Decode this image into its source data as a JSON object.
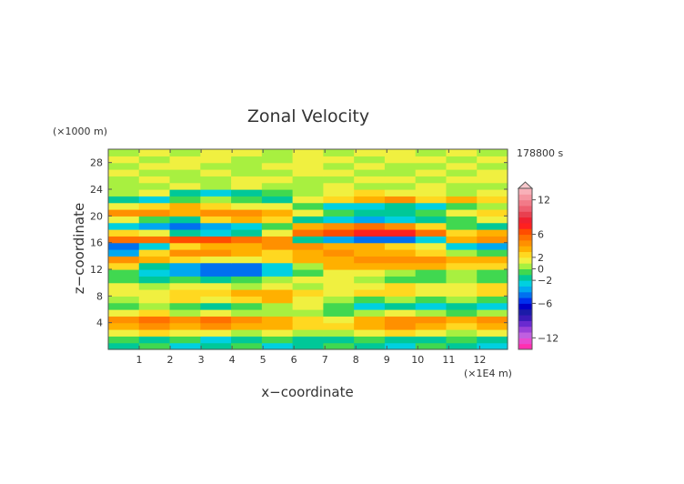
{
  "chart_data": {
    "type": "heatmap",
    "title": "Zonal Velocity",
    "xlabel": "x−coordinate",
    "ylabel": "z−coordinate",
    "x_unit": "(×1E4 m)",
    "y_unit": "(×1000 m)",
    "time_label": "178800 s",
    "x_ticks": [
      "1",
      "2",
      "3",
      "4",
      "5",
      "6",
      "7",
      "8",
      "9",
      "10",
      "11",
      "12"
    ],
    "y_ticks": [
      "4",
      "8",
      "12",
      "16",
      "20",
      "24",
      "28"
    ],
    "xlim": [
      0,
      12.9
    ],
    "ylim": [
      0,
      30
    ],
    "grid": false,
    "legend_position": "right",
    "colorbar": {
      "levels": [
        -14,
        -13,
        -12,
        -11,
        -10,
        -9,
        -8,
        -7,
        -6,
        -5,
        -4,
        -3,
        -2,
        -1,
        0,
        1,
        2,
        3,
        4,
        5,
        6,
        7,
        8,
        9,
        10,
        11,
        12,
        13,
        14
      ],
      "colors": [
        "#ff2fb0",
        "#e84ad0",
        "#c060e0",
        "#9a40d8",
        "#6a2ad0",
        "#3a1ab8",
        "#1b1ba8",
        "#0000c8",
        "#0030ee",
        "#0070f0",
        "#00a8f0",
        "#00d0e0",
        "#00c898",
        "#40d850",
        "#a8f040",
        "#f0f040",
        "#ffd820",
        "#ffb000",
        "#ff9000",
        "#ff7000",
        "#ff4c00",
        "#ff2020",
        "#f02030",
        "#e84050",
        "#ee5f70",
        "#f27a88",
        "#f595a0",
        "#f8b0b8"
      ],
      "tick_labels": [
        "12",
        "6",
        "2",
        "0",
        "−2",
        "−6",
        "−12"
      ],
      "tick_values": [
        12,
        6,
        2,
        0,
        -2,
        -6,
        -12
      ]
    },
    "rows": [
      {
        "z": 0.5,
        "u": [
          -2,
          -1,
          -3,
          -2,
          -1,
          -3,
          -2,
          -1,
          -2,
          -3,
          -1,
          -2,
          -3
        ]
      },
      {
        "z": 1.5,
        "u": [
          -1,
          -2,
          -1,
          -3,
          -2,
          -1,
          -2,
          -2,
          -1,
          -2,
          -2,
          -1,
          -2
        ]
      },
      {
        "z": 2.5,
        "u": [
          1,
          2,
          1,
          1,
          0,
          1,
          0,
          0,
          1,
          2,
          1,
          0,
          1
        ]
      },
      {
        "z": 3.5,
        "u": [
          3,
          4,
          3,
          4,
          3,
          3,
          2,
          2,
          3,
          4,
          3,
          2,
          3
        ]
      },
      {
        "z": 4.5,
        "u": [
          4,
          5,
          4,
          5,
          4,
          3,
          2,
          1,
          3,
          4,
          4,
          3,
          4
        ]
      },
      {
        "z": 5.5,
        "u": [
          1,
          2,
          0,
          1,
          0,
          0,
          0,
          -1,
          0,
          1,
          0,
          -1,
          0
        ]
      },
      {
        "z": 6.5,
        "u": [
          -1,
          0,
          -1,
          -2,
          -1,
          0,
          1,
          -1,
          -3,
          -2,
          -3,
          -2,
          -3
        ]
      },
      {
        "z": 7.5,
        "u": [
          0,
          1,
          2,
          1,
          2,
          3,
          1,
          0,
          -1,
          0,
          -1,
          0,
          -1
        ]
      },
      {
        "z": 8.5,
        "u": [
          1,
          1,
          2,
          2,
          3,
          3,
          2,
          1,
          2,
          2,
          1,
          1,
          2
        ]
      },
      {
        "z": 9.5,
        "u": [
          1,
          0,
          1,
          1,
          0,
          1,
          0,
          1,
          1,
          2,
          1,
          1,
          2
        ]
      },
      {
        "z": 10.5,
        "u": [
          -1,
          -2,
          -1,
          -2,
          -1,
          0,
          1,
          1,
          0,
          -1,
          -1,
          0,
          -1
        ]
      },
      {
        "z": 11.5,
        "u": [
          -1,
          -3,
          -4,
          -5,
          -5,
          -3,
          -1,
          1,
          1,
          0,
          -1,
          0,
          -1
        ]
      },
      {
        "z": 12.5,
        "u": [
          2,
          -2,
          -4,
          -5,
          -5,
          -3,
          0,
          3,
          3,
          3,
          3,
          2,
          2
        ]
      },
      {
        "z": 13.5,
        "u": [
          4,
          3,
          2,
          1,
          1,
          2,
          3,
          3,
          4,
          4,
          4,
          3,
          3
        ]
      },
      {
        "z": 14.5,
        "u": [
          -4,
          2,
          4,
          4,
          3,
          2,
          3,
          4,
          3,
          3,
          2,
          0,
          -1
        ]
      },
      {
        "z": 15.5,
        "u": [
          -5,
          -3,
          2,
          3,
          3,
          4,
          4,
          3,
          3,
          2,
          1,
          -3,
          -4
        ]
      },
      {
        "z": 16.5,
        "u": [
          5,
          5,
          6,
          6,
          5,
          4,
          -2,
          -4,
          -5,
          -5,
          -3,
          3,
          4
        ]
      },
      {
        "z": 17.5,
        "u": [
          2,
          1,
          -2,
          -3,
          -2,
          1,
          5,
          6,
          7,
          7,
          5,
          2,
          3
        ]
      },
      {
        "z": 18.5,
        "u": [
          -3,
          -4,
          -5,
          -4,
          -3,
          -1,
          3,
          4,
          5,
          4,
          2,
          -1,
          -2
        ]
      },
      {
        "z": 19.5,
        "u": [
          1,
          -1,
          -2,
          2,
          3,
          2,
          -2,
          -3,
          -4,
          -3,
          -2,
          -1,
          1
        ]
      },
      {
        "z": 20.5,
        "u": [
          4,
          4,
          3,
          4,
          4,
          3,
          1,
          -1,
          -2,
          -2,
          -1,
          1,
          2
        ]
      },
      {
        "z": 21.5,
        "u": [
          1,
          2,
          3,
          2,
          1,
          1,
          -1,
          -3,
          -3,
          -2,
          -3,
          -1,
          0
        ]
      },
      {
        "z": 22.5,
        "u": [
          -2,
          -3,
          -1,
          0,
          -1,
          -2,
          1,
          2,
          3,
          4,
          2,
          3,
          2
        ]
      },
      {
        "z": 23.5,
        "u": [
          0,
          1,
          -2,
          -3,
          -2,
          -1,
          0,
          1,
          2,
          1,
          1,
          0,
          1
        ]
      },
      {
        "z": 24.5,
        "u": [
          0,
          0,
          1,
          0,
          1,
          0,
          0,
          1,
          0,
          0,
          1,
          0,
          0
        ]
      },
      {
        "z": 25.5,
        "u": [
          0,
          1,
          0,
          0,
          1,
          1,
          0,
          0,
          1,
          1,
          0,
          1,
          1
        ]
      },
      {
        "z": 26.5,
        "u": [
          1,
          0,
          0,
          1,
          0,
          0,
          1,
          1,
          0,
          0,
          1,
          0,
          1
        ]
      },
      {
        "z": 27.5,
        "u": [
          0,
          1,
          1,
          0,
          0,
          1,
          1,
          0,
          1,
          0,
          0,
          1,
          0
        ]
      },
      {
        "z": 28.5,
        "u": [
          1,
          0,
          1,
          1,
          0,
          0,
          1,
          1,
          0,
          1,
          1,
          0,
          1
        ]
      },
      {
        "z": 29.5,
        "u": [
          0,
          1,
          0,
          1,
          1,
          0,
          1,
          0,
          1,
          1,
          0,
          1,
          0
        ]
      }
    ]
  }
}
